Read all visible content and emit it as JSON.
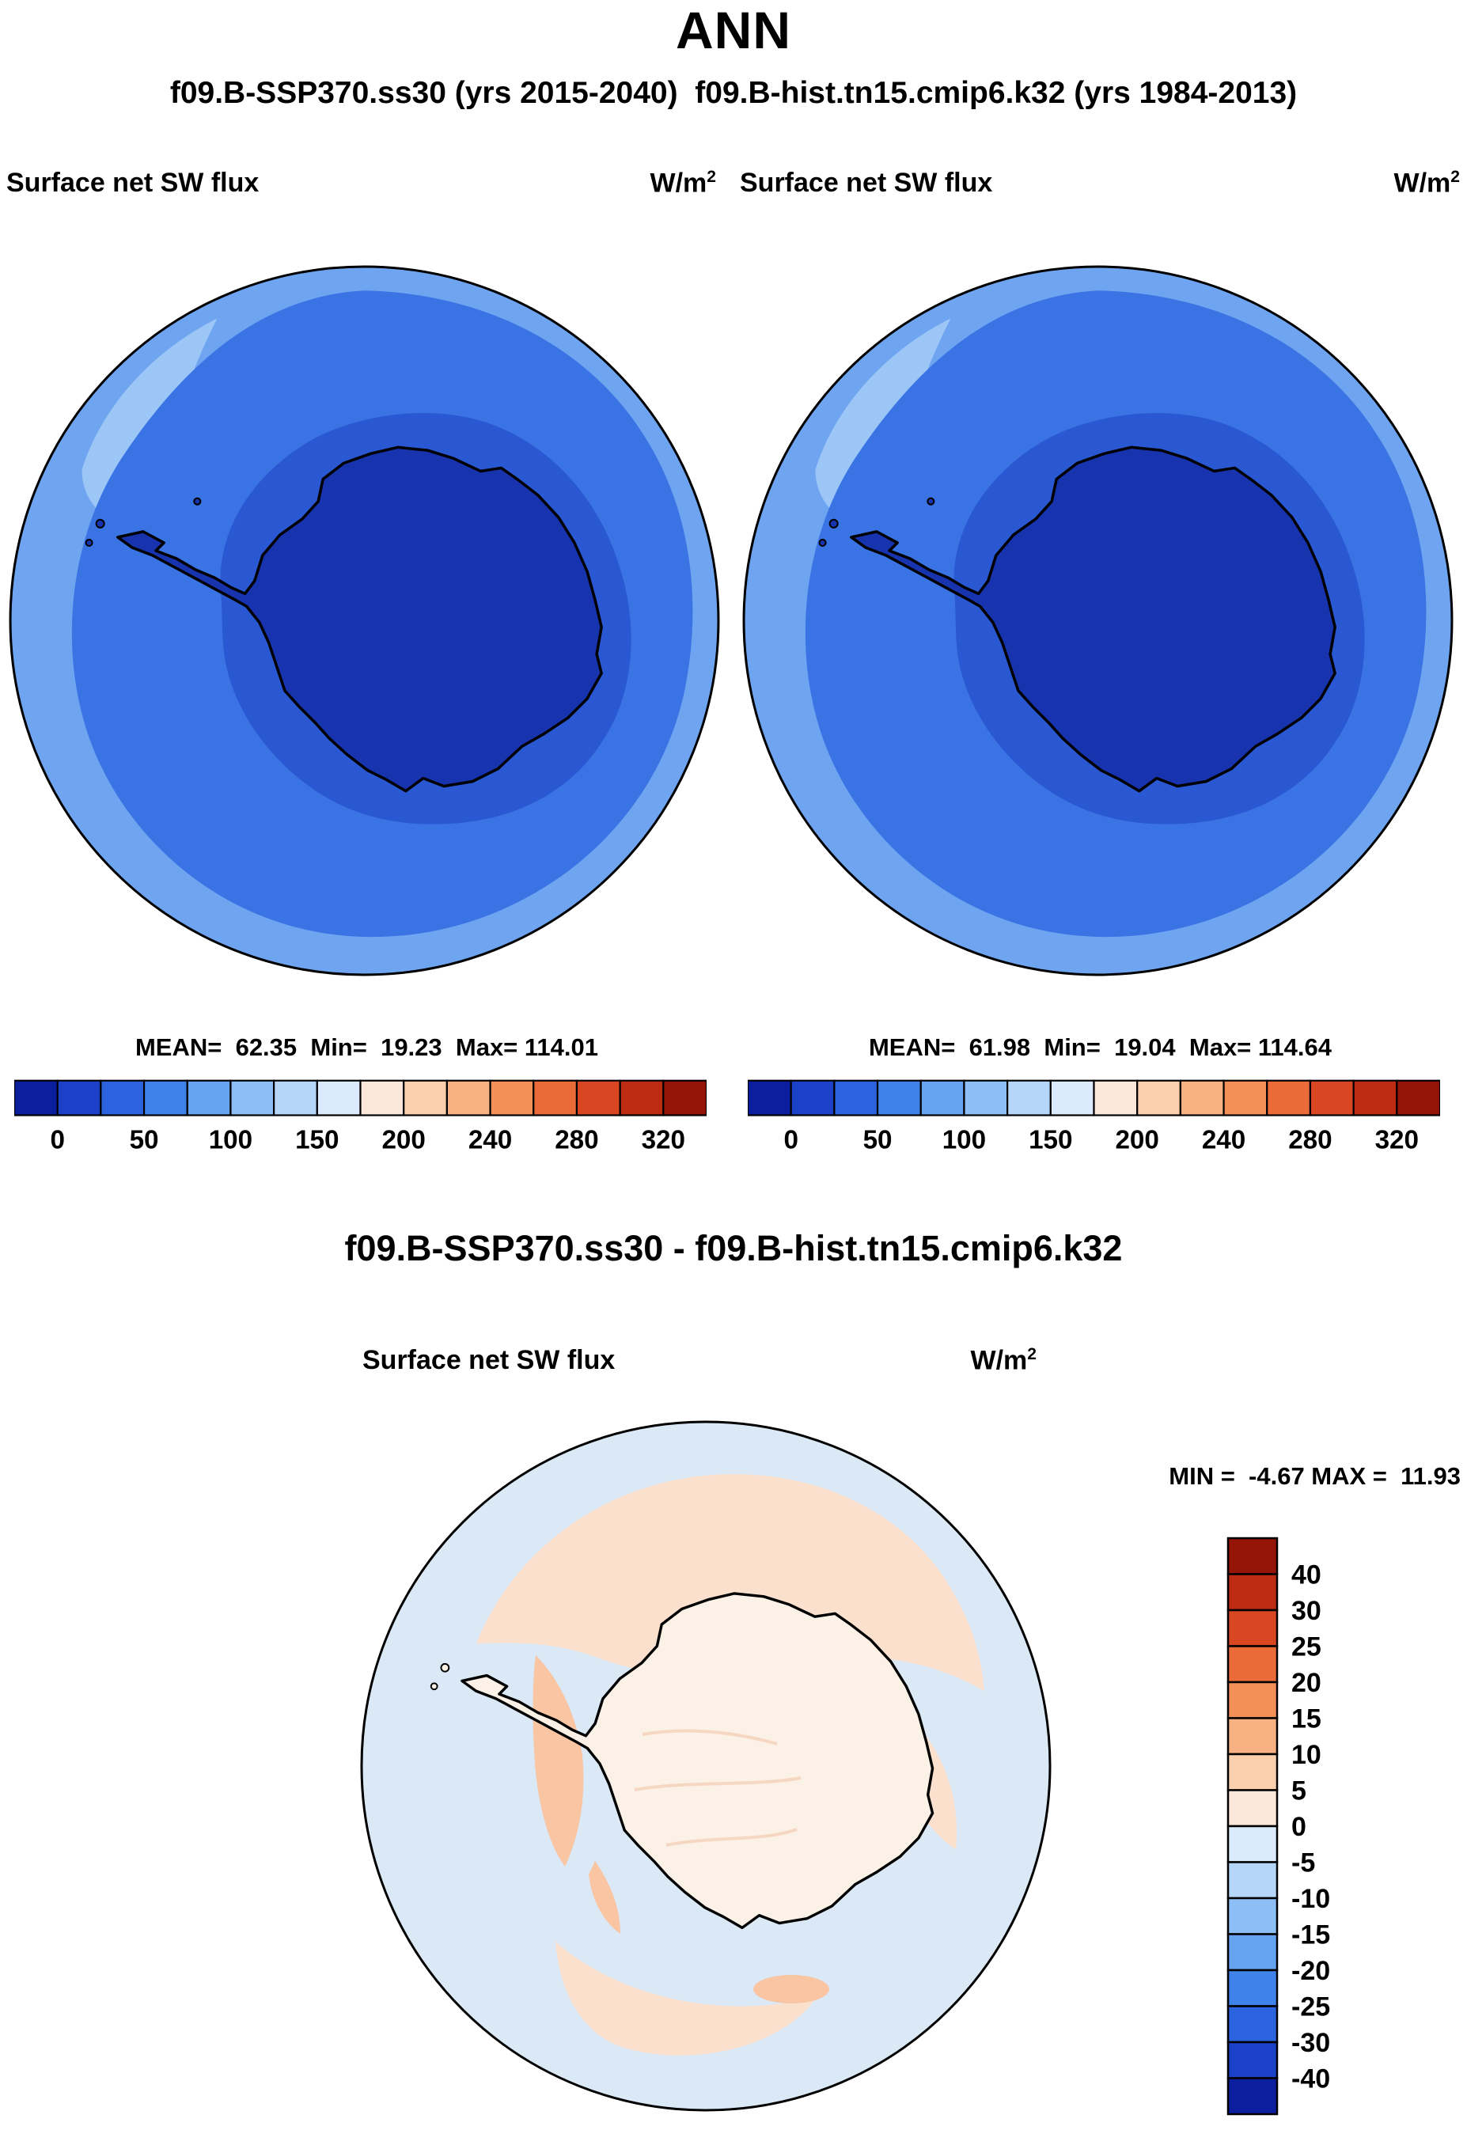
{
  "header": {
    "season": "ANN",
    "cases": "f09.B-SSP370.ss30 (yrs 2015-2040)  f09.B-hist.tn15.cmip6.k32 (yrs 1984-2013)"
  },
  "panels": {
    "left": {
      "title": "Surface net SW flux",
      "units_base": "W/m",
      "units_exp": "2",
      "stats_line": "MEAN=  62.35  Min=  19.23  Max= 114.01"
    },
    "right": {
      "title": "Surface net SW flux",
      "units_base": "W/m",
      "units_exp": "2",
      "stats_line": "MEAN=  61.98  Min=  19.04  Max= 114.64"
    },
    "diff": {
      "heading": "f09.B-SSP370.ss30 - f09.B-hist.tn15.cmip6.k32",
      "title": "Surface net SW flux",
      "units_base": "W/m",
      "units_exp": "2",
      "minmax_line": "MIN =  -4.67 MAX =  11.93"
    }
  },
  "colorbar_flux": {
    "colors": [
      "#0b1f9e",
      "#1a41c8",
      "#2b62de",
      "#3f82ea",
      "#66a3f0",
      "#8dbef5",
      "#b5d6f9",
      "#dbeafc",
      "#fbe8da",
      "#f9cfae",
      "#f7b183",
      "#f29058",
      "#ea6a38",
      "#d84722",
      "#bc2b12",
      "#941408"
    ],
    "labels": [
      "0",
      "50",
      "100",
      "150",
      "200",
      "240",
      "280",
      "320"
    ],
    "label_boundaries": [
      0,
      2,
      4,
      6,
      8,
      10,
      12,
      14
    ],
    "levels": [
      0,
      25,
      50,
      75,
      100,
      125,
      150,
      175,
      200,
      220,
      240,
      260,
      280,
      300,
      320
    ]
  },
  "colorbar_diff": {
    "colors": [
      "#941408",
      "#bc2b12",
      "#d84722",
      "#ea6a38",
      "#f29058",
      "#f7b183",
      "#f9cfae",
      "#fbe8da",
      "#dbeafc",
      "#b5d6f9",
      "#8dbef5",
      "#66a3f0",
      "#3f82ea",
      "#2b62de",
      "#1a41c8",
      "#0b1f9e"
    ],
    "labels": [
      "40",
      "30",
      "25",
      "20",
      "15",
      "10",
      "5",
      "0",
      "-5",
      "-10",
      "-15",
      "-20",
      "-25",
      "-30",
      "-40"
    ]
  },
  "colors": {
    "map": {
      "ring": "#6ea4f0",
      "patch": "#9cc6f6",
      "main": "#3a74e4",
      "inner": "#2a57d2",
      "land": "#1733ae"
    },
    "diff_map": {
      "base": "#dbe9f7",
      "peach": "#fbe0cd",
      "peach2": "#f9c5a3",
      "land": "#fcf1e6",
      "wisp": "#f6d7c2"
    },
    "outline": "#000000"
  },
  "chart_data": [
    {
      "type": "heatmap",
      "projection": "south-polar-stereographic",
      "title": "Surface net SW flux",
      "units": "W/m2",
      "case": "f09.B-SSP370.ss30",
      "years": "2015-2040",
      "season": "ANN",
      "stats": {
        "mean": 62.35,
        "min": 19.23,
        "max": 114.01
      },
      "contour_levels": [
        0,
        25,
        50,
        75,
        100,
        125,
        150,
        175,
        200,
        220,
        240,
        260,
        280,
        300,
        320
      ],
      "labeled_levels": [
        0,
        50,
        100,
        150,
        200,
        240,
        280,
        320
      ],
      "palette": "blue-to-red 16-step",
      "legend_position": "horizontal below map"
    },
    {
      "type": "heatmap",
      "projection": "south-polar-stereographic",
      "title": "Surface net SW flux",
      "units": "W/m2",
      "case": "f09.B-hist.tn15.cmip6.k32",
      "years": "1984-2013",
      "season": "ANN",
      "stats": {
        "mean": 61.98,
        "min": 19.04,
        "max": 114.64
      },
      "contour_levels": [
        0,
        25,
        50,
        75,
        100,
        125,
        150,
        175,
        200,
        220,
        240,
        260,
        280,
        300,
        320
      ],
      "labeled_levels": [
        0,
        50,
        100,
        150,
        200,
        240,
        280,
        320
      ],
      "palette": "blue-to-red 16-step",
      "legend_position": "horizontal below map"
    },
    {
      "type": "heatmap",
      "projection": "south-polar-stereographic",
      "title": "Surface net SW flux",
      "units": "W/m2",
      "case": "f09.B-SSP370.ss30 - f09.B-hist.tn15.cmip6.k32",
      "season": "ANN",
      "stats": {
        "min": -4.67,
        "max": 11.93
      },
      "contour_levels": [
        -40,
        -30,
        -25,
        -20,
        -15,
        -10,
        -5,
        0,
        5,
        10,
        15,
        20,
        25,
        30,
        40
      ],
      "palette": "red-to-blue 16-step (vertical)",
      "legend_position": "vertical right of map"
    }
  ]
}
